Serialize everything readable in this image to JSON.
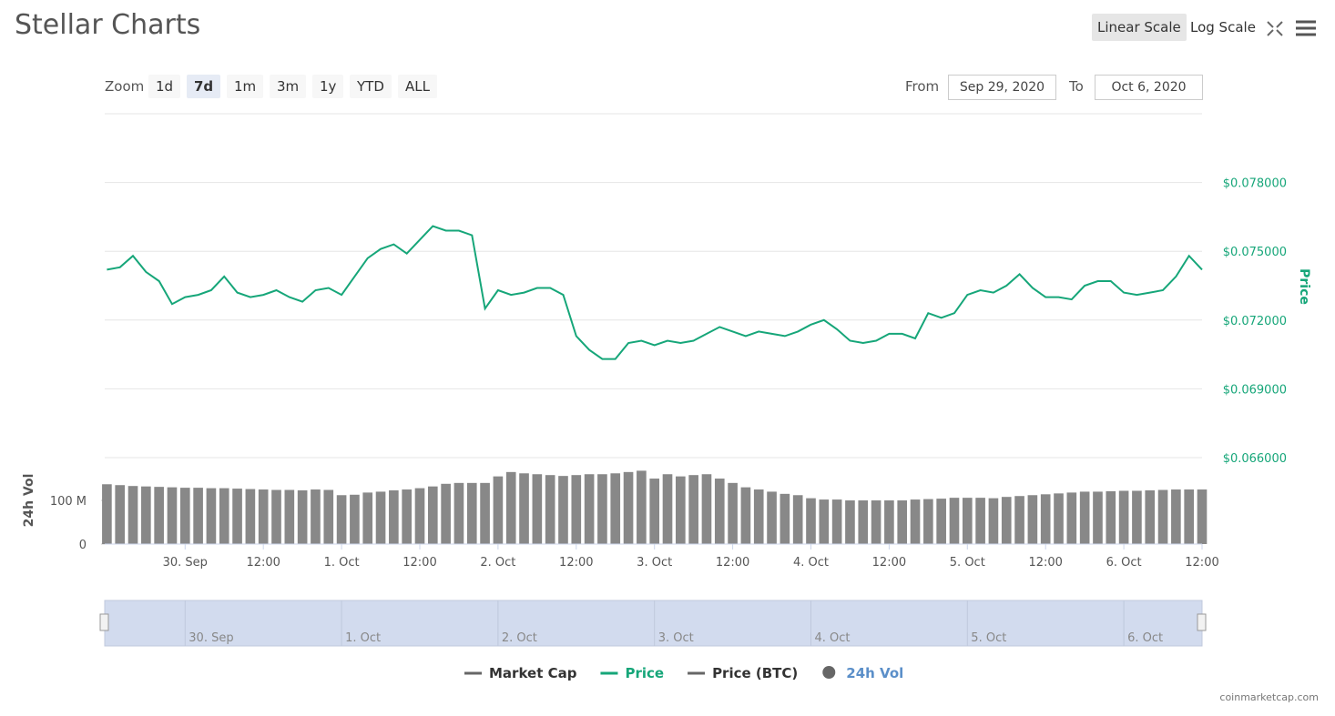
{
  "header": {
    "title": "Stellar Charts",
    "scales": [
      "Linear Scale",
      "Log Scale"
    ]
  },
  "zoom": {
    "label": "Zoom",
    "buttons": [
      "1d",
      "7d",
      "1m",
      "3m",
      "1y",
      "YTD",
      "ALL"
    ]
  },
  "range": {
    "from_label": "From",
    "from": "Sep 29, 2020",
    "to_label": "To",
    "to": "Oct 6, 2020"
  },
  "legend": [
    {
      "name": "Market Cap",
      "color": "#666666"
    },
    {
      "name": "Price (BTC)",
      "color": "#666666"
    },
    {
      "name": "24h Vol",
      "color": "#666666"
    }
  ],
  "navigator": {
    "labels": [
      {
        "value": "2020-09-30T00:00",
        "label": "30. Sep"
      },
      {
        "value": "2020-10-01T00:00",
        "label": "1. Oct"
      },
      {
        "value": "2020-10-02T00:00",
        "label": "2. Oct"
      },
      {
        "value": "2020-10-03T00:00",
        "label": "3. Oct"
      },
      {
        "value": "2020-10-04T00:00",
        "label": "4. Oct"
      },
      {
        "value": "2020-10-05T00:00",
        "label": "5. Oct"
      },
      {
        "value": "2020-10-06T00:00",
        "label": "6. Oct"
      }
    ]
  },
  "credit": "coinmarketcap.com",
  "chart_data": [
    {
      "type": "line",
      "y_label": "Price",
      "xlim": [
        "2020-09-29T11:40",
        "2020-10-06T12:00"
      ],
      "ylim": [
        0.066,
        0.081
      ],
      "yticks": [
        {
          "value": 0.066,
          "label": "$0.066000"
        },
        {
          "value": 0.069,
          "label": "$0.069000"
        },
        {
          "value": 0.072,
          "label": "$0.072000"
        },
        {
          "value": 0.075,
          "label": "$0.075000"
        },
        {
          "value": 0.078,
          "label": "$0.078000"
        }
      ],
      "grid": true,
      "x": [
        "2020-09-29T12:00",
        "2020-09-29T14:00",
        "2020-09-29T16:00",
        "2020-09-29T18:00",
        "2020-09-29T20:00",
        "2020-09-29T22:00",
        "2020-09-30T00:00",
        "2020-09-30T02:00",
        "2020-09-30T04:00",
        "2020-09-30T06:00",
        "2020-09-30T08:00",
        "2020-09-30T10:00",
        "2020-09-30T12:00",
        "2020-09-30T14:00",
        "2020-09-30T16:00",
        "2020-09-30T18:00",
        "2020-09-30T20:00",
        "2020-09-30T22:00",
        "2020-10-01T00:00",
        "2020-10-01T02:00",
        "2020-10-01T04:00",
        "2020-10-01T06:00",
        "2020-10-01T08:00",
        "2020-10-01T10:00",
        "2020-10-01T12:00",
        "2020-10-01T14:00",
        "2020-10-01T16:00",
        "2020-10-01T18:00",
        "2020-10-01T20:00",
        "2020-10-01T22:00",
        "2020-10-02T00:00",
        "2020-10-02T02:00",
        "2020-10-02T04:00",
        "2020-10-02T06:00",
        "2020-10-02T08:00",
        "2020-10-02T10:00",
        "2020-10-02T12:00",
        "2020-10-02T14:00",
        "2020-10-02T16:00",
        "2020-10-02T18:00",
        "2020-10-02T20:00",
        "2020-10-02T22:00",
        "2020-10-03T00:00",
        "2020-10-03T02:00",
        "2020-10-03T04:00",
        "2020-10-03T06:00",
        "2020-10-03T08:00",
        "2020-10-03T10:00",
        "2020-10-03T12:00",
        "2020-10-03T14:00",
        "2020-10-03T16:00",
        "2020-10-03T18:00",
        "2020-10-03T20:00",
        "2020-10-03T22:00",
        "2020-10-04T00:00",
        "2020-10-04T02:00",
        "2020-10-04T04:00",
        "2020-10-04T06:00",
        "2020-10-04T08:00",
        "2020-10-04T10:00",
        "2020-10-04T12:00",
        "2020-10-04T14:00",
        "2020-10-04T16:00",
        "2020-10-04T18:00",
        "2020-10-04T20:00",
        "2020-10-04T22:00",
        "2020-10-05T00:00",
        "2020-10-05T02:00",
        "2020-10-05T04:00",
        "2020-10-05T06:00",
        "2020-10-05T08:00",
        "2020-10-05T10:00",
        "2020-10-05T12:00",
        "2020-10-05T14:00",
        "2020-10-05T16:00",
        "2020-10-05T18:00",
        "2020-10-05T20:00",
        "2020-10-05T22:00",
        "2020-10-06T00:00",
        "2020-10-06T02:00",
        "2020-10-06T04:00",
        "2020-10-06T06:00",
        "2020-10-06T08:00",
        "2020-10-06T10:00",
        "2020-10-06T12:00"
      ],
      "series": [
        {
          "name": "Price",
          "color": "#16a679",
          "values": [
            0.0742,
            0.0743,
            0.0748,
            0.0741,
            0.0737,
            0.0727,
            0.073,
            0.0731,
            0.0733,
            0.0739,
            0.0732,
            0.073,
            0.0731,
            0.0733,
            0.073,
            0.0728,
            0.0733,
            0.0734,
            0.0731,
            0.0739,
            0.0747,
            0.0751,
            0.0753,
            0.0749,
            0.0755,
            0.0761,
            0.0759,
            0.0759,
            0.0757,
            0.0725,
            0.0733,
            0.0731,
            0.0732,
            0.0734,
            0.0734,
            0.0731,
            0.0713,
            0.0707,
            0.0703,
            0.0703,
            0.071,
            0.0711,
            0.0709,
            0.0711,
            0.071,
            0.0711,
            0.0714,
            0.0717,
            0.0715,
            0.0713,
            0.0715,
            0.0714,
            0.0713,
            0.0715,
            0.0718,
            0.072,
            0.0716,
            0.0711,
            0.071,
            0.0711,
            0.0714,
            0.0714,
            0.0712,
            0.0723,
            0.0721,
            0.0723,
            0.0731,
            0.0733,
            0.0732,
            0.0735,
            0.074,
            0.0734,
            0.073,
            0.073,
            0.0729,
            0.0735,
            0.0737,
            0.0737,
            0.0732,
            0.0731,
            0.0732,
            0.0733,
            0.0739,
            0.0748,
            0.0742
          ]
        }
      ]
    },
    {
      "type": "bar",
      "y_label": "24h Vol",
      "xlim": [
        "2020-09-29T11:40",
        "2020-10-06T12:00"
      ],
      "ylim": [
        0,
        198
      ],
      "yticks": [
        0,
        {
          "value": 100,
          "label": "100 M"
        }
      ],
      "xticks": [
        {
          "value": "2020-09-30T00:00",
          "label": "30. Sep"
        },
        {
          "value": "2020-09-30T12:00",
          "label": "12:00"
        },
        {
          "value": "2020-10-01T00:00",
          "label": "1. Oct"
        },
        {
          "value": "2020-10-01T12:00",
          "label": "12:00"
        },
        {
          "value": "2020-10-02T00:00",
          "label": "2. Oct"
        },
        {
          "value": "2020-10-02T12:00",
          "label": "12:00"
        },
        {
          "value": "2020-10-03T00:00",
          "label": "3. Oct"
        },
        {
          "value": "2020-10-03T12:00",
          "label": "12:00"
        },
        {
          "value": "2020-10-04T00:00",
          "label": "4. Oct"
        },
        {
          "value": "2020-10-04T12:00",
          "label": "12:00"
        },
        {
          "value": "2020-10-05T00:00",
          "label": "5. Oct"
        },
        {
          "value": "2020-10-05T12:00",
          "label": "12:00"
        },
        {
          "value": "2020-10-06T00:00",
          "label": "6. Oct"
        },
        {
          "value": "2020-10-06T12:00",
          "label": "12:00"
        }
      ],
      "color": "#888888",
      "x": [
        "2020-09-29T12:00",
        "2020-09-29T14:00",
        "2020-09-29T16:00",
        "2020-09-29T18:00",
        "2020-09-29T20:00",
        "2020-09-29T22:00",
        "2020-09-30T00:00",
        "2020-09-30T02:00",
        "2020-09-30T04:00",
        "2020-09-30T06:00",
        "2020-09-30T08:00",
        "2020-09-30T10:00",
        "2020-09-30T12:00",
        "2020-09-30T14:00",
        "2020-09-30T16:00",
        "2020-09-30T18:00",
        "2020-09-30T20:00",
        "2020-09-30T22:00",
        "2020-10-01T00:00",
        "2020-10-01T02:00",
        "2020-10-01T04:00",
        "2020-10-01T06:00",
        "2020-10-01T08:00",
        "2020-10-01T10:00",
        "2020-10-01T12:00",
        "2020-10-01T14:00",
        "2020-10-01T16:00",
        "2020-10-01T18:00",
        "2020-10-01T20:00",
        "2020-10-01T22:00",
        "2020-10-02T00:00",
        "2020-10-02T02:00",
        "2020-10-02T04:00",
        "2020-10-02T06:00",
        "2020-10-02T08:00",
        "2020-10-02T10:00",
        "2020-10-02T12:00",
        "2020-10-02T14:00",
        "2020-10-02T16:00",
        "2020-10-02T18:00",
        "2020-10-02T20:00",
        "2020-10-02T22:00",
        "2020-10-03T00:00",
        "2020-10-03T02:00",
        "2020-10-03T04:00",
        "2020-10-03T06:00",
        "2020-10-03T08:00",
        "2020-10-03T10:00",
        "2020-10-03T12:00",
        "2020-10-03T14:00",
        "2020-10-03T16:00",
        "2020-10-03T18:00",
        "2020-10-03T20:00",
        "2020-10-03T22:00",
        "2020-10-04T00:00",
        "2020-10-04T02:00",
        "2020-10-04T04:00",
        "2020-10-04T06:00",
        "2020-10-04T08:00",
        "2020-10-04T10:00",
        "2020-10-04T12:00",
        "2020-10-04T14:00",
        "2020-10-04T16:00",
        "2020-10-04T18:00",
        "2020-10-04T20:00",
        "2020-10-04T22:00",
        "2020-10-05T00:00",
        "2020-10-05T02:00",
        "2020-10-05T04:00",
        "2020-10-05T06:00",
        "2020-10-05T08:00",
        "2020-10-05T10:00",
        "2020-10-05T12:00",
        "2020-10-05T14:00",
        "2020-10-05T16:00",
        "2020-10-05T18:00",
        "2020-10-05T20:00",
        "2020-10-05T22:00",
        "2020-10-06T00:00",
        "2020-10-06T02:00",
        "2020-10-06T04:00",
        "2020-10-06T06:00",
        "2020-10-06T08:00",
        "2020-10-06T10:00",
        "2020-10-06T12:00"
      ],
      "values": [
        137,
        135,
        133,
        132,
        131,
        130,
        129,
        129,
        128,
        128,
        127,
        126,
        125,
        124,
        124,
        123,
        125,
        124,
        112,
        113,
        118,
        120,
        123,
        125,
        128,
        132,
        138,
        140,
        140,
        140,
        155,
        165,
        162,
        160,
        158,
        156,
        158,
        160,
        160,
        162,
        165,
        168,
        150,
        160,
        155,
        158,
        160,
        150,
        140,
        130,
        125,
        120,
        115,
        112,
        105,
        102,
        102,
        100,
        100,
        100,
        100,
        100,
        102,
        103,
        104,
        106,
        106,
        106,
        105,
        108,
        110,
        112,
        114,
        116,
        118,
        120,
        120,
        121,
        122,
        122,
        123,
        124,
        125,
        125,
        125
      ]
    }
  ]
}
